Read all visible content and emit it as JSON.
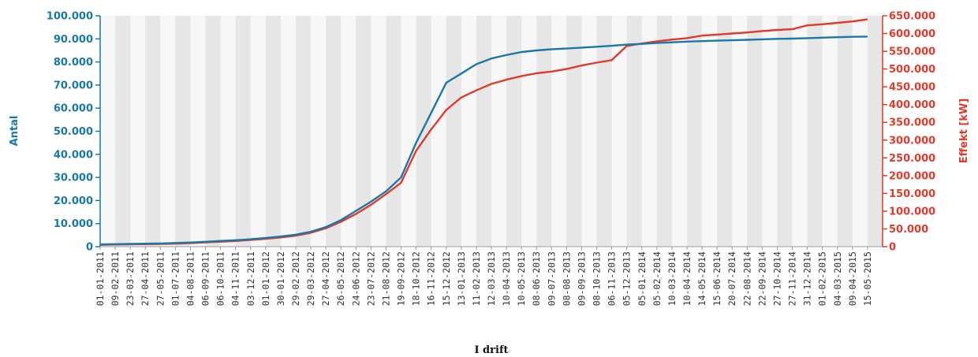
{
  "chart_data": {
    "type": "line",
    "xlabel": "I drift",
    "ylabel_left": "Antal",
    "ylabel_right": "Effekt [kW]",
    "ylim_left": [
      0,
      100000
    ],
    "ylim_right": [
      0,
      650000
    ],
    "yticks_left": [
      "0",
      "10.000",
      "20.000",
      "30.000",
      "40.000",
      "50.000",
      "60.000",
      "70.000",
      "80.000",
      "90.000",
      "100.000"
    ],
    "yticks_right": [
      "0",
      "50.000",
      "100.000",
      "150.000",
      "200.000",
      "250.000",
      "300.000",
      "350.000",
      "400.000",
      "450.000",
      "500.000",
      "550.000",
      "600.000",
      "650.000"
    ],
    "grid": "alternating vertical bands",
    "categories": [
      "01-01-2011",
      "09-02-2011",
      "23-03-2011",
      "27-04-2011",
      "27-05-2011",
      "01-07-2011",
      "04-08-2011",
      "06-09-2011",
      "06-10-2011",
      "04-11-2011",
      "03-12-2011",
      "01-01-2012",
      "30-01-2012",
      "29-02-2012",
      "29-03-2012",
      "27-04-2012",
      "26-05-2012",
      "24-06-2012",
      "23-07-2012",
      "21-08-2012",
      "19-09-2012",
      "18-10-2012",
      "16-11-2012",
      "15-12-2012",
      "13-01-2013",
      "11-02-2013",
      "12-03-2013",
      "10-04-2013",
      "10-05-2013",
      "08-06-2013",
      "09-07-2013",
      "08-08-2013",
      "09-09-2013",
      "08-10-2013",
      "06-11-2013",
      "05-12-2013",
      "05-01-2014",
      "05-02-2014",
      "10-03-2014",
      "10-04-2014",
      "14-05-2014",
      "15-06-2014",
      "20-07-2014",
      "22-08-2014",
      "22-09-2014",
      "27-10-2014",
      "27-11-2014",
      "31-12-2014",
      "01-02-2015",
      "04-03-2015",
      "09-04-2015",
      "15-05-2015"
    ],
    "series": [
      {
        "name": "Antal",
        "axis": "left",
        "color": "#1a78a8",
        "values": [
          1000,
          1100,
          1200,
          1300,
          1400,
          1600,
          1800,
          2100,
          2500,
          2800,
          3200,
          3800,
          4400,
          5200,
          6500,
          8500,
          11500,
          15500,
          19500,
          24000,
          30000,
          45000,
          58000,
          71000,
          75000,
          79000,
          81500,
          83000,
          84300,
          85000,
          85500,
          85800,
          86200,
          86600,
          87000,
          87500,
          87800,
          88200,
          88500,
          88800,
          89000,
          89200,
          89400,
          89600,
          89800,
          90000,
          90100,
          90300,
          90500,
          90700,
          90900,
          91000
        ]
      },
      {
        "name": "Effekt [kW]",
        "axis": "right",
        "color": "#e03a2a",
        "values": [
          5000,
          6000,
          6500,
          7000,
          7500,
          8500,
          10000,
          12000,
          14000,
          16000,
          19000,
          22000,
          26000,
          31000,
          39000,
          52000,
          70000,
          92000,
          118000,
          148000,
          180000,
          270000,
          330000,
          385000,
          420000,
          440000,
          458000,
          470000,
          480000,
          488000,
          493000,
          500000,
          510000,
          518000,
          525000,
          565000,
          572000,
          578000,
          583000,
          587000,
          594000,
          597000,
          600000,
          603000,
          607000,
          610000,
          612000,
          623000,
          626000,
          630000,
          634000,
          640000
        ]
      }
    ]
  }
}
